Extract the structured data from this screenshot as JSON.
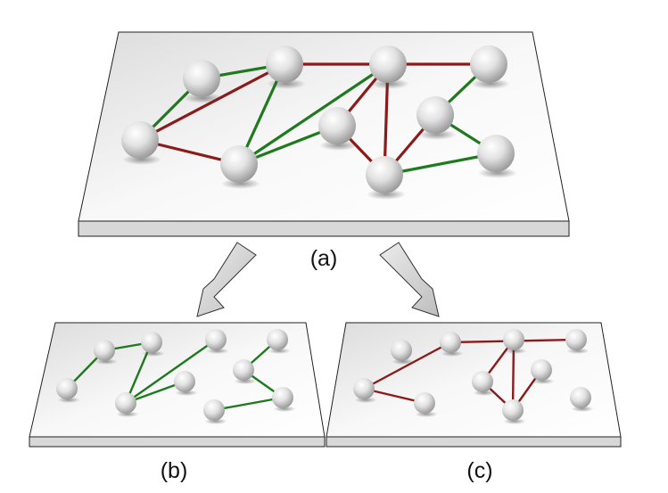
{
  "labels": {
    "a": "(a)",
    "b": "(b)",
    "c": "(c)"
  },
  "colors": {
    "green_edge": "#1f7a1f",
    "red_edge": "#8b1a1a",
    "plate_top": "#efefef",
    "plate_edge": "#cfcfcf",
    "arrow_fill": "#d6d6d6"
  },
  "graph": {
    "nodes": [
      "n1",
      "n2",
      "n3",
      "n4",
      "n5",
      "n6",
      "n7",
      "n8",
      "n9",
      "n10"
    ],
    "green_edges": [
      [
        "n1",
        "n2"
      ],
      [
        "n2",
        "n3"
      ],
      [
        "n3",
        "n4"
      ],
      [
        "n4",
        "n5"
      ],
      [
        "n4",
        "n6"
      ],
      [
        "n7",
        "n8"
      ],
      [
        "n9",
        "n10"
      ],
      [
        "n8",
        "n10"
      ]
    ],
    "red_edges": [
      [
        "n1",
        "n3"
      ],
      [
        "n1",
        "n4"
      ],
      [
        "n3",
        "n7"
      ],
      [
        "n5",
        "n6"
      ],
      [
        "n5",
        "n9"
      ],
      [
        "n9",
        "n8"
      ],
      [
        "n6",
        "n9"
      ]
    ]
  }
}
